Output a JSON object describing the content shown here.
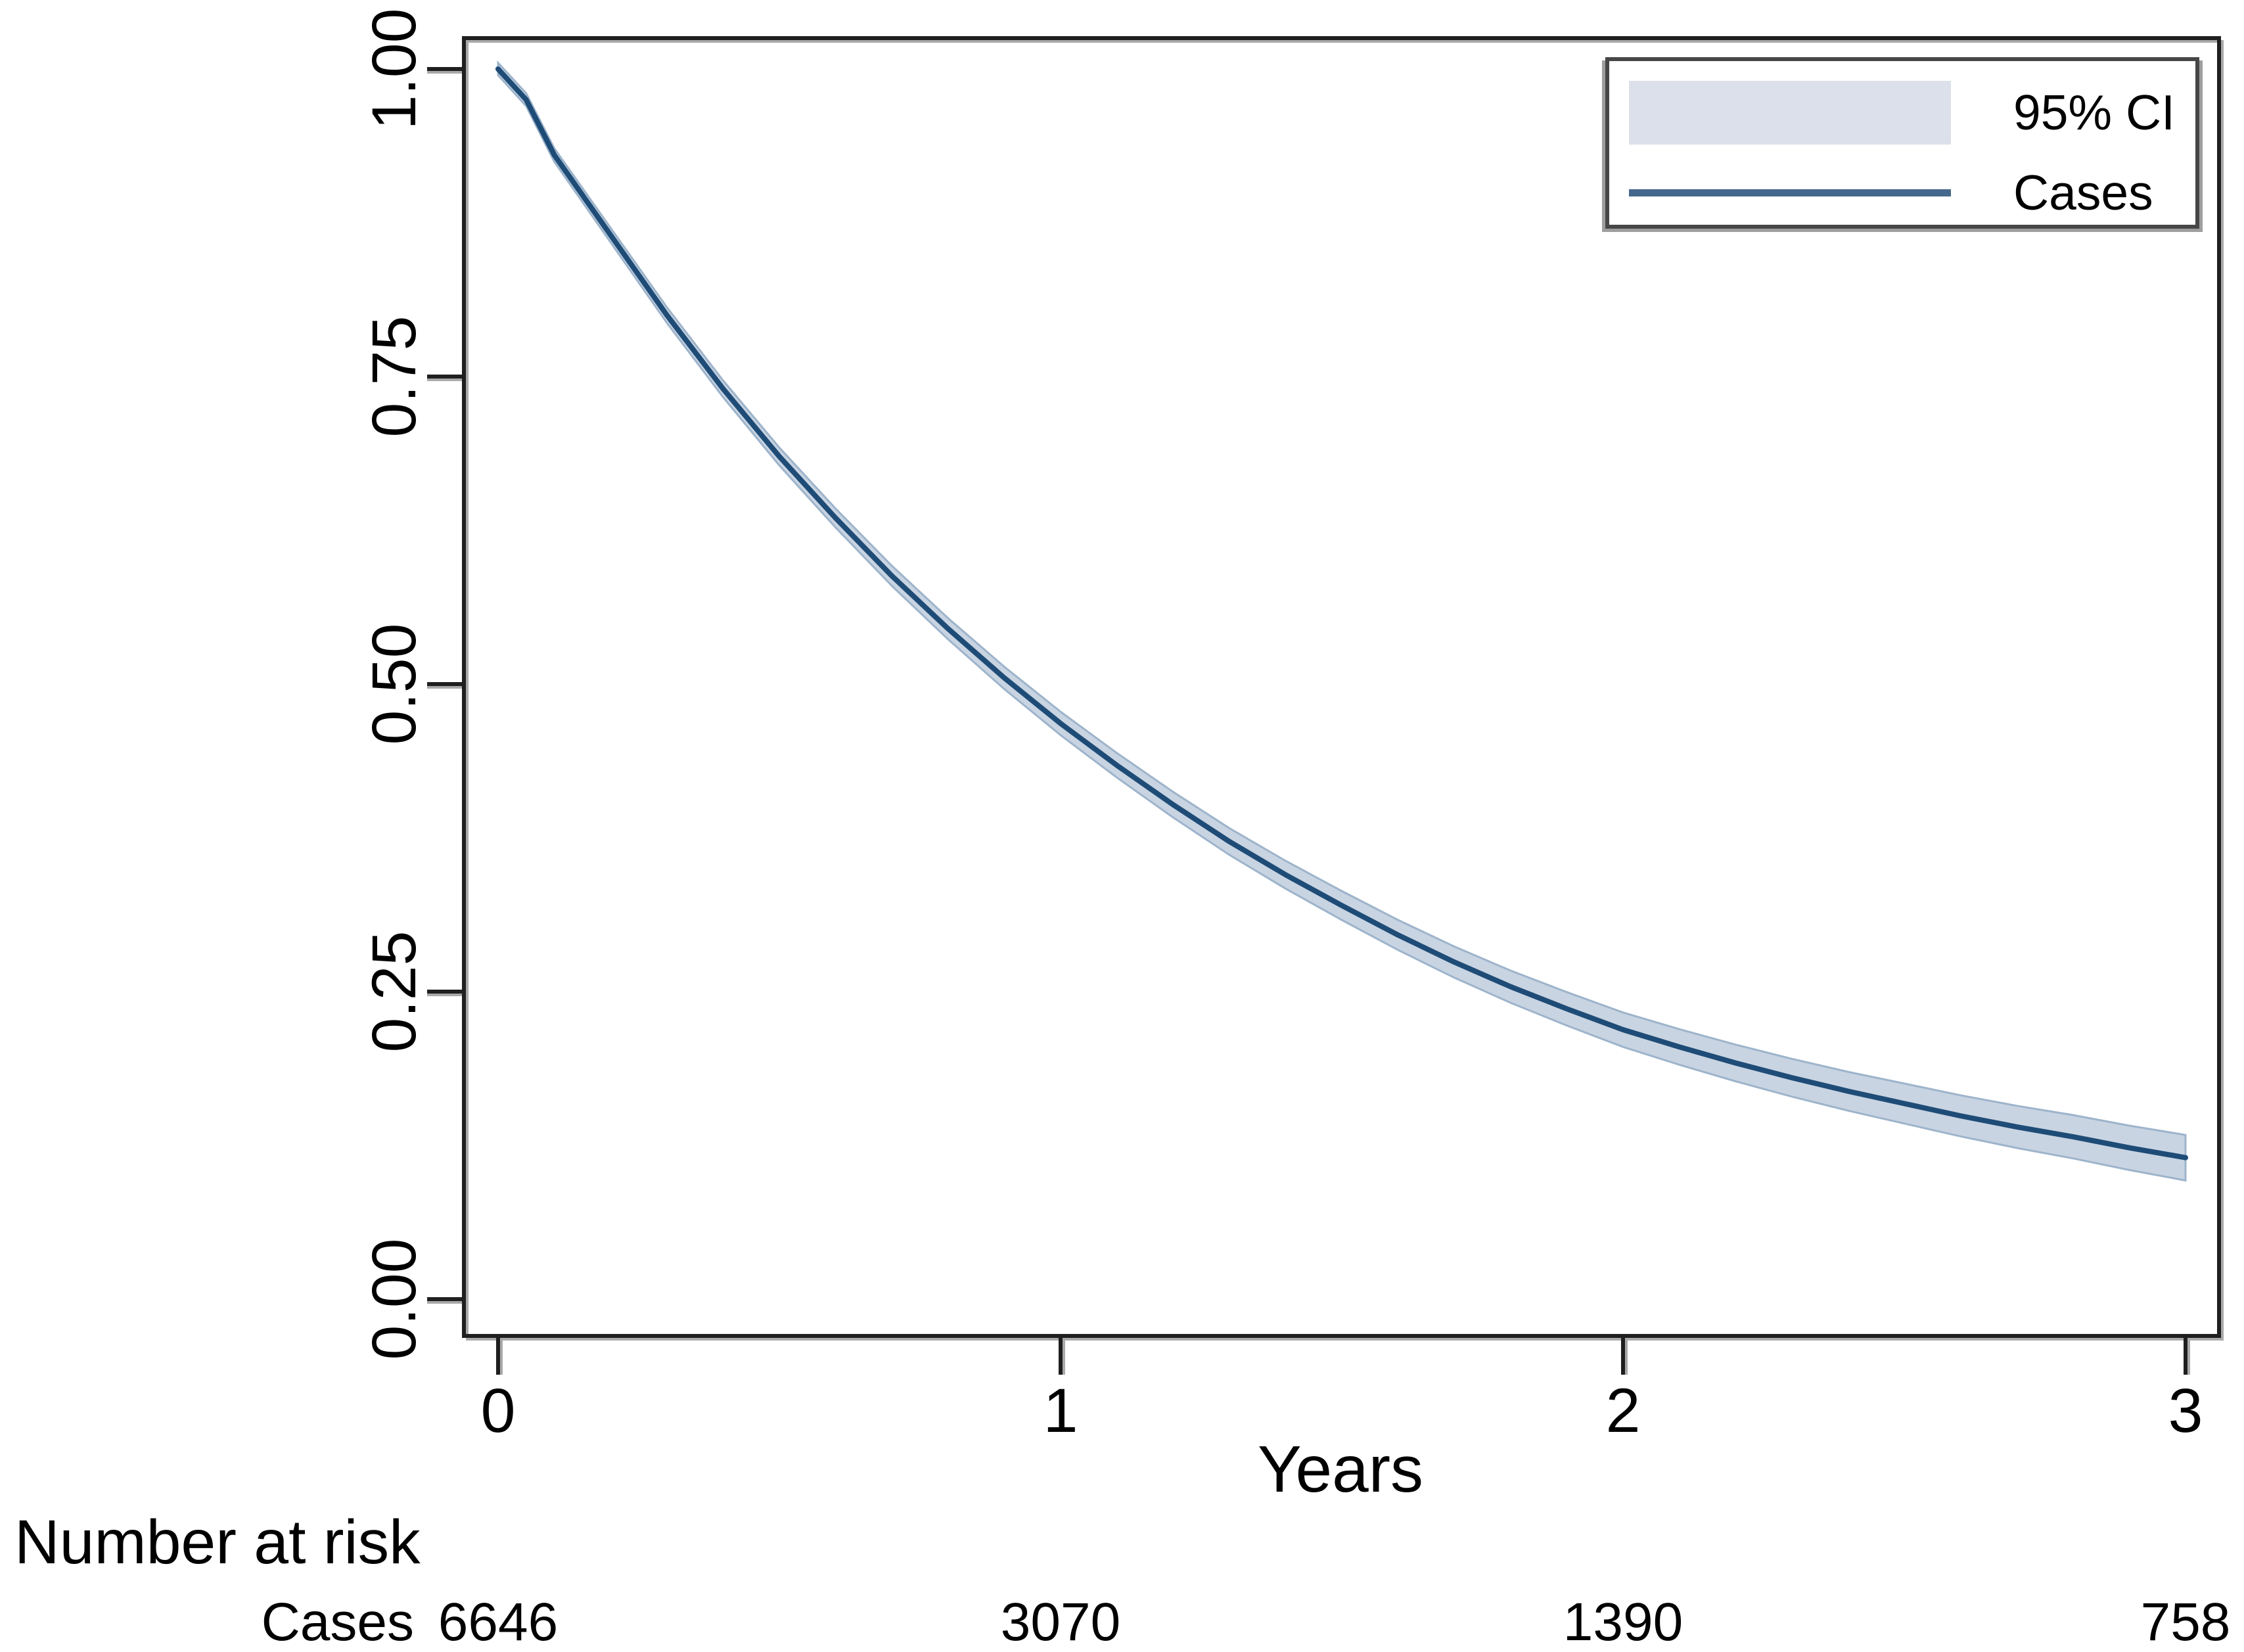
{
  "axes": {
    "x_label": "Years",
    "x_ticks": [
      "0",
      "1",
      "2",
      "3"
    ],
    "x_tick_values": [
      0,
      1,
      2,
      3
    ],
    "y_ticks": [
      "1.00",
      "0.75",
      "0.50",
      "0.25",
      "0.00"
    ],
    "y_tick_values": [
      1.0,
      0.75,
      0.5,
      0.25,
      0.0
    ]
  },
  "legend": {
    "items": [
      {
        "label": "95% CI",
        "type": "band",
        "color": "#dce0ea"
      },
      {
        "label": "Cases",
        "type": "line",
        "color": "#44688c"
      }
    ]
  },
  "risk_table": {
    "title": "Number at risk",
    "rows": [
      {
        "label": "Cases",
        "values": [
          "6646",
          "3070",
          "1390",
          "758"
        ]
      }
    ]
  },
  "colors": {
    "curve": "#1e4c77",
    "band_fill": "#c9d4e2",
    "band_edge": "#9db4cb",
    "frame": "#1f1f1f",
    "frame_shadow": "#a9a9a9",
    "text": "#000000"
  },
  "chart_data": {
    "type": "line",
    "title": "",
    "xlabel": "Years",
    "ylabel": "",
    "xlim": [
      -0.06,
      3.06
    ],
    "ylim": [
      -0.03,
      1.03
    ],
    "grid": false,
    "legend_position": "top-right",
    "x_ticks": [
      0,
      1,
      2,
      3
    ],
    "y_ticks": [
      0.0,
      0.25,
      0.5,
      0.75,
      1.0
    ],
    "series": [
      {
        "name": "Cases",
        "ci_label": "95% CI",
        "x": [
          0,
          0.05,
          0.1,
          0.2,
          0.3,
          0.4,
          0.5,
          0.6,
          0.7,
          0.8,
          0.9,
          1.0,
          1.1,
          1.2,
          1.3,
          1.4,
          1.5,
          1.6,
          1.7,
          1.8,
          1.9,
          2.0,
          2.1,
          2.2,
          2.3,
          2.4,
          2.5,
          2.6,
          2.7,
          2.8,
          2.9,
          3.0
        ],
        "y": [
          1.0,
          0.975,
          0.93,
          0.865,
          0.8,
          0.74,
          0.685,
          0.635,
          0.588,
          0.545,
          0.505,
          0.468,
          0.434,
          0.402,
          0.372,
          0.345,
          0.32,
          0.296,
          0.274,
          0.254,
          0.236,
          0.219,
          0.205,
          0.192,
          0.18,
          0.169,
          0.159,
          0.149,
          0.14,
          0.132,
          0.123,
          0.115
        ],
        "ci_halfwidth_model": {
          "base": 0.005,
          "slope": 0.0045
        }
      }
    ],
    "number_at_risk": {
      "label": "Cases",
      "times": [
        0,
        1,
        2,
        3
      ],
      "counts": [
        6646,
        3070,
        1390,
        758
      ]
    }
  }
}
